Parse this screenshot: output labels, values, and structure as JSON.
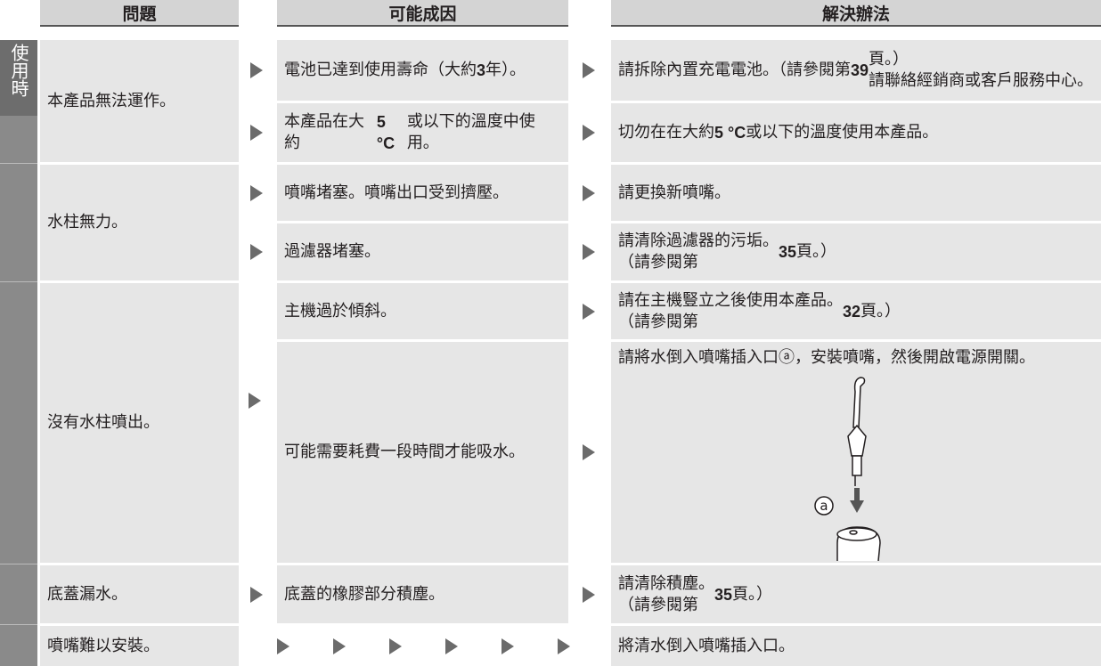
{
  "header": {
    "problem": "問題",
    "cause": "可能成因",
    "solution": "解決辦法"
  },
  "side_label": "使用時",
  "rows": [
    {
      "problem": "本產品無法運作。",
      "causes": [
        {
          "cause": "電池已達到使用壽命（大約 3 年）。",
          "solution": "請拆除內置充電電池。（請參閱第 39 頁。）\n請聯絡經銷商或客戶服務中心。"
        },
        {
          "cause": "本產品在大約 5 °C 或以下的溫度中使用。",
          "solution": "切勿在在大約 5 °C 或以下的溫度使用本產品。"
        }
      ]
    },
    {
      "problem": "水柱無力。",
      "causes": [
        {
          "cause": "噴嘴堵塞。噴嘴出口受到擠壓。",
          "solution": "請更換新噴嘴。"
        },
        {
          "cause": "過濾器堵塞。",
          "solution": "請清除過濾器的污垢。\n（請參閱第 35 頁。）"
        }
      ]
    },
    {
      "problem": "沒有水柱噴出。",
      "causes": [
        {
          "cause": "主機過於傾斜。",
          "solution": "請在主機豎立之後使用本產品。\n（請參閱第 32 頁。）"
        },
        {
          "cause": "可能需要耗費一段時間才能吸水。",
          "solution": "請將水倒入噴嘴插入口ⓐ，安裝噴嘴，然後開啟電源開關。"
        }
      ]
    },
    {
      "problem": "底蓋漏水。",
      "causes": [
        {
          "cause": "底蓋的橡膠部分積塵。",
          "solution": "請清除積塵。\n（請參閱第 35 頁。）"
        }
      ]
    },
    {
      "problem": "噴嘴難以安裝。",
      "causes": [
        {
          "solution": "將清水倒入噴嘴插入口。"
        }
      ]
    }
  ],
  "illustration_label": "a"
}
